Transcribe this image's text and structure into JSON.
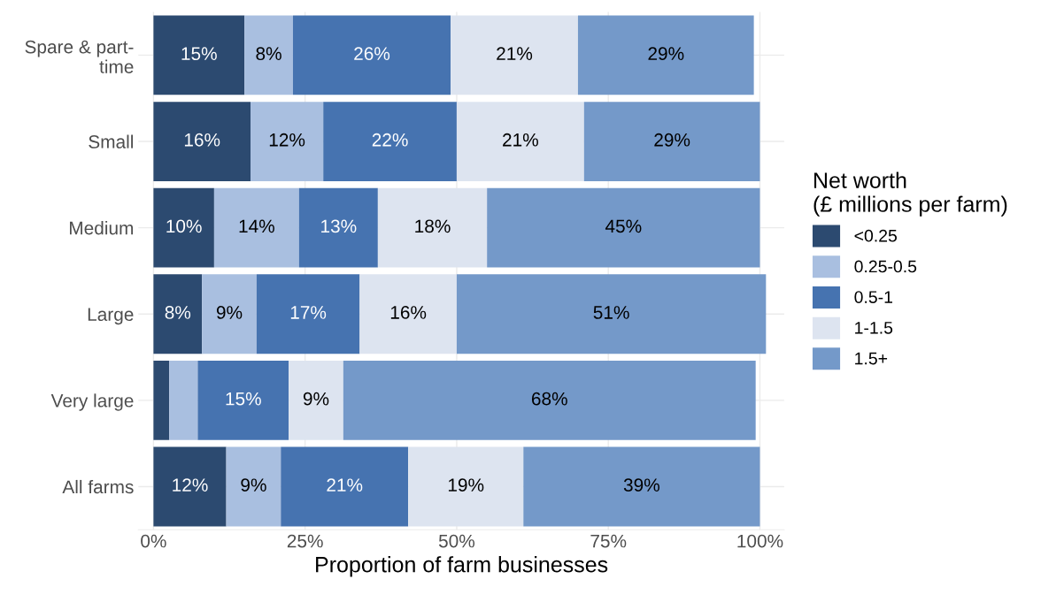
{
  "chart_data": {
    "type": "bar",
    "orientation": "horizontal",
    "stacked": true,
    "categories": [
      "Spare & part-\ntime",
      "Small",
      "Medium",
      "Large",
      "Very large",
      "All farms"
    ],
    "xlabel": "Proportion of farm businesses",
    "legend_title": "Net worth\n(£ millions per farm)",
    "xlim": [
      -2.5,
      104
    ],
    "xticks": [
      {
        "value": 0,
        "label": "0%"
      },
      {
        "value": 25,
        "label": "25%"
      },
      {
        "value": 50,
        "label": "50%"
      },
      {
        "value": 75,
        "label": "75%"
      },
      {
        "value": 100,
        "label": "100%"
      }
    ],
    "grid": true,
    "legend": "right",
    "series": [
      {
        "name": "<0.25",
        "color": "#2c4a70",
        "values": [
          15,
          16,
          10,
          8,
          2.6,
          12
        ],
        "value_labels": [
          "15%",
          "16%",
          "10%",
          "8%",
          null,
          "12%"
        ]
      },
      {
        "name": "0.25-0.5",
        "color": "#a9bfe0",
        "values": [
          8,
          12,
          14,
          9,
          4.7,
          9
        ],
        "value_labels": [
          "8%",
          "12%",
          "14%",
          "9%",
          null,
          "9%"
        ]
      },
      {
        "name": "0.5-1",
        "color": "#4673b0",
        "values": [
          26,
          22,
          13,
          17,
          15,
          21
        ],
        "value_labels": [
          "26%",
          "22%",
          "13%",
          "17%",
          "15%",
          "21%"
        ]
      },
      {
        "name": "1-1.5",
        "color": "#dde4f0",
        "values": [
          21,
          21,
          18,
          16,
          9,
          19
        ],
        "value_labels": [
          "21%",
          "21%",
          "18%",
          "16%",
          "9%",
          "19%"
        ]
      },
      {
        "name": "1.5+",
        "color": "#7499c9",
        "values": [
          29,
          29,
          45,
          51,
          68,
          39
        ],
        "value_labels": [
          "29%",
          "29%",
          "45%",
          "51%",
          "68%",
          "39%"
        ]
      }
    ]
  }
}
